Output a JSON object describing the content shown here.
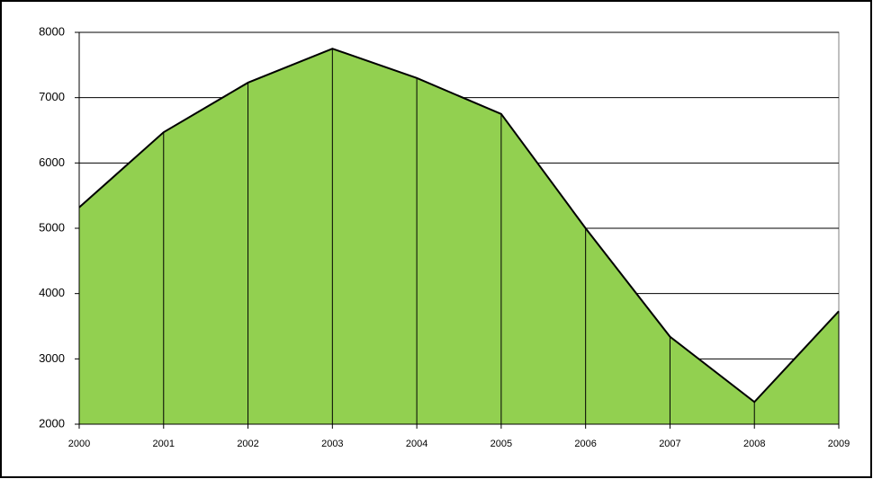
{
  "chart_data": {
    "type": "area",
    "categories": [
      "2000",
      "2001",
      "2002",
      "2003",
      "2004",
      "2005",
      "2006",
      "2007",
      "2008",
      "2009"
    ],
    "values": [
      5320,
      6470,
      7230,
      7750,
      7300,
      6750,
      5000,
      3340,
      2340,
      3730
    ],
    "color": "#92d050",
    "ylim": [
      2000,
      8000
    ],
    "yticks": [
      2000,
      3000,
      4000,
      5000,
      6000,
      7000,
      8000
    ],
    "grid": true
  }
}
